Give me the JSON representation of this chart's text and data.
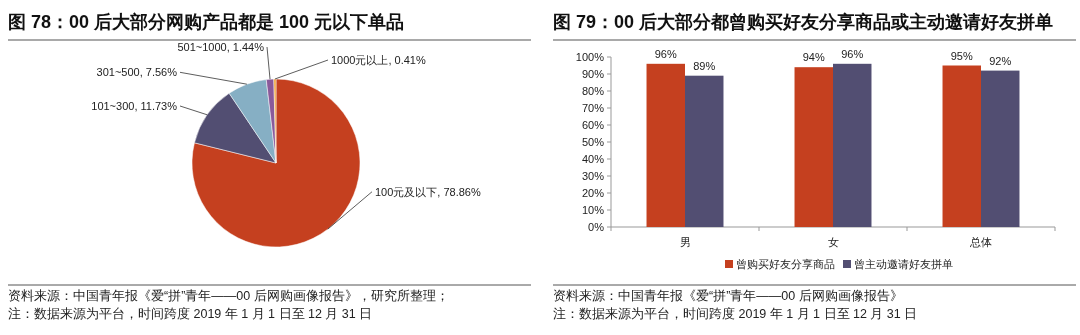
{
  "chart_data": [
    {
      "type": "pie",
      "title": "图 78：00 后大部分网购产品都是 100 元以下单品",
      "categories": [
        "100元及以下",
        "101~300",
        "301~500",
        "501~1000",
        "1000元以上"
      ],
      "values": [
        78.86,
        11.73,
        7.56,
        1.44,
        0.41
      ],
      "value_labels": [
        "78.86%",
        "11.73%",
        "7.56%",
        "1.44%",
        "0.41%"
      ],
      "colors": [
        "#c5401f",
        "#524e72",
        "#86afc4",
        "#8a5a9a",
        "#f0a030"
      ],
      "annotations": [
        "资料来源：中国青年报《爱“拼”青年——00 后网购画像报告》，研究所整理；",
        "注：数据来源为平台，时间跨度 2019 年 1 月 1 日至 12 月 31 日"
      ]
    },
    {
      "type": "bar",
      "title": "图 79：00 后大部分都曾购买好友分享商品或主动邀请好友拼单",
      "categories": [
        "男",
        "女",
        "总体"
      ],
      "series": [
        {
          "name": "曾购买好友分享商品",
          "color": "#c5401f",
          "values": [
            96,
            94,
            95
          ],
          "value_labels": [
            "96%",
            "94%",
            "95%"
          ]
        },
        {
          "name": "曾主动邀请好友拼单",
          "color": "#524e72",
          "values": [
            89,
            96,
            92
          ],
          "value_labels": [
            "89%",
            "96%",
            "92%"
          ]
        }
      ],
      "ylim": [
        0,
        100
      ],
      "yticks": [
        {
          "value": 0,
          "label": "0%"
        },
        {
          "value": 10,
          "label": "10%"
        },
        {
          "value": 20,
          "label": "20%"
        },
        {
          "value": 30,
          "label": "30%"
        },
        {
          "value": 40,
          "label": "40%"
        },
        {
          "value": 50,
          "label": "50%"
        },
        {
          "value": 60,
          "label": "60%"
        },
        {
          "value": 70,
          "label": "70%"
        },
        {
          "value": 80,
          "label": "80%"
        },
        {
          "value": 90,
          "label": "90%"
        },
        {
          "value": 100,
          "label": "100%"
        }
      ],
      "legend": "bottom",
      "annotations": [
        "资料来源：中国青年报《爱“拼”青年——00 后网购画像报告》",
        "注：数据来源为平台，时间跨度 2019 年 1 月 1 日至 12 月 31 日"
      ]
    }
  ]
}
